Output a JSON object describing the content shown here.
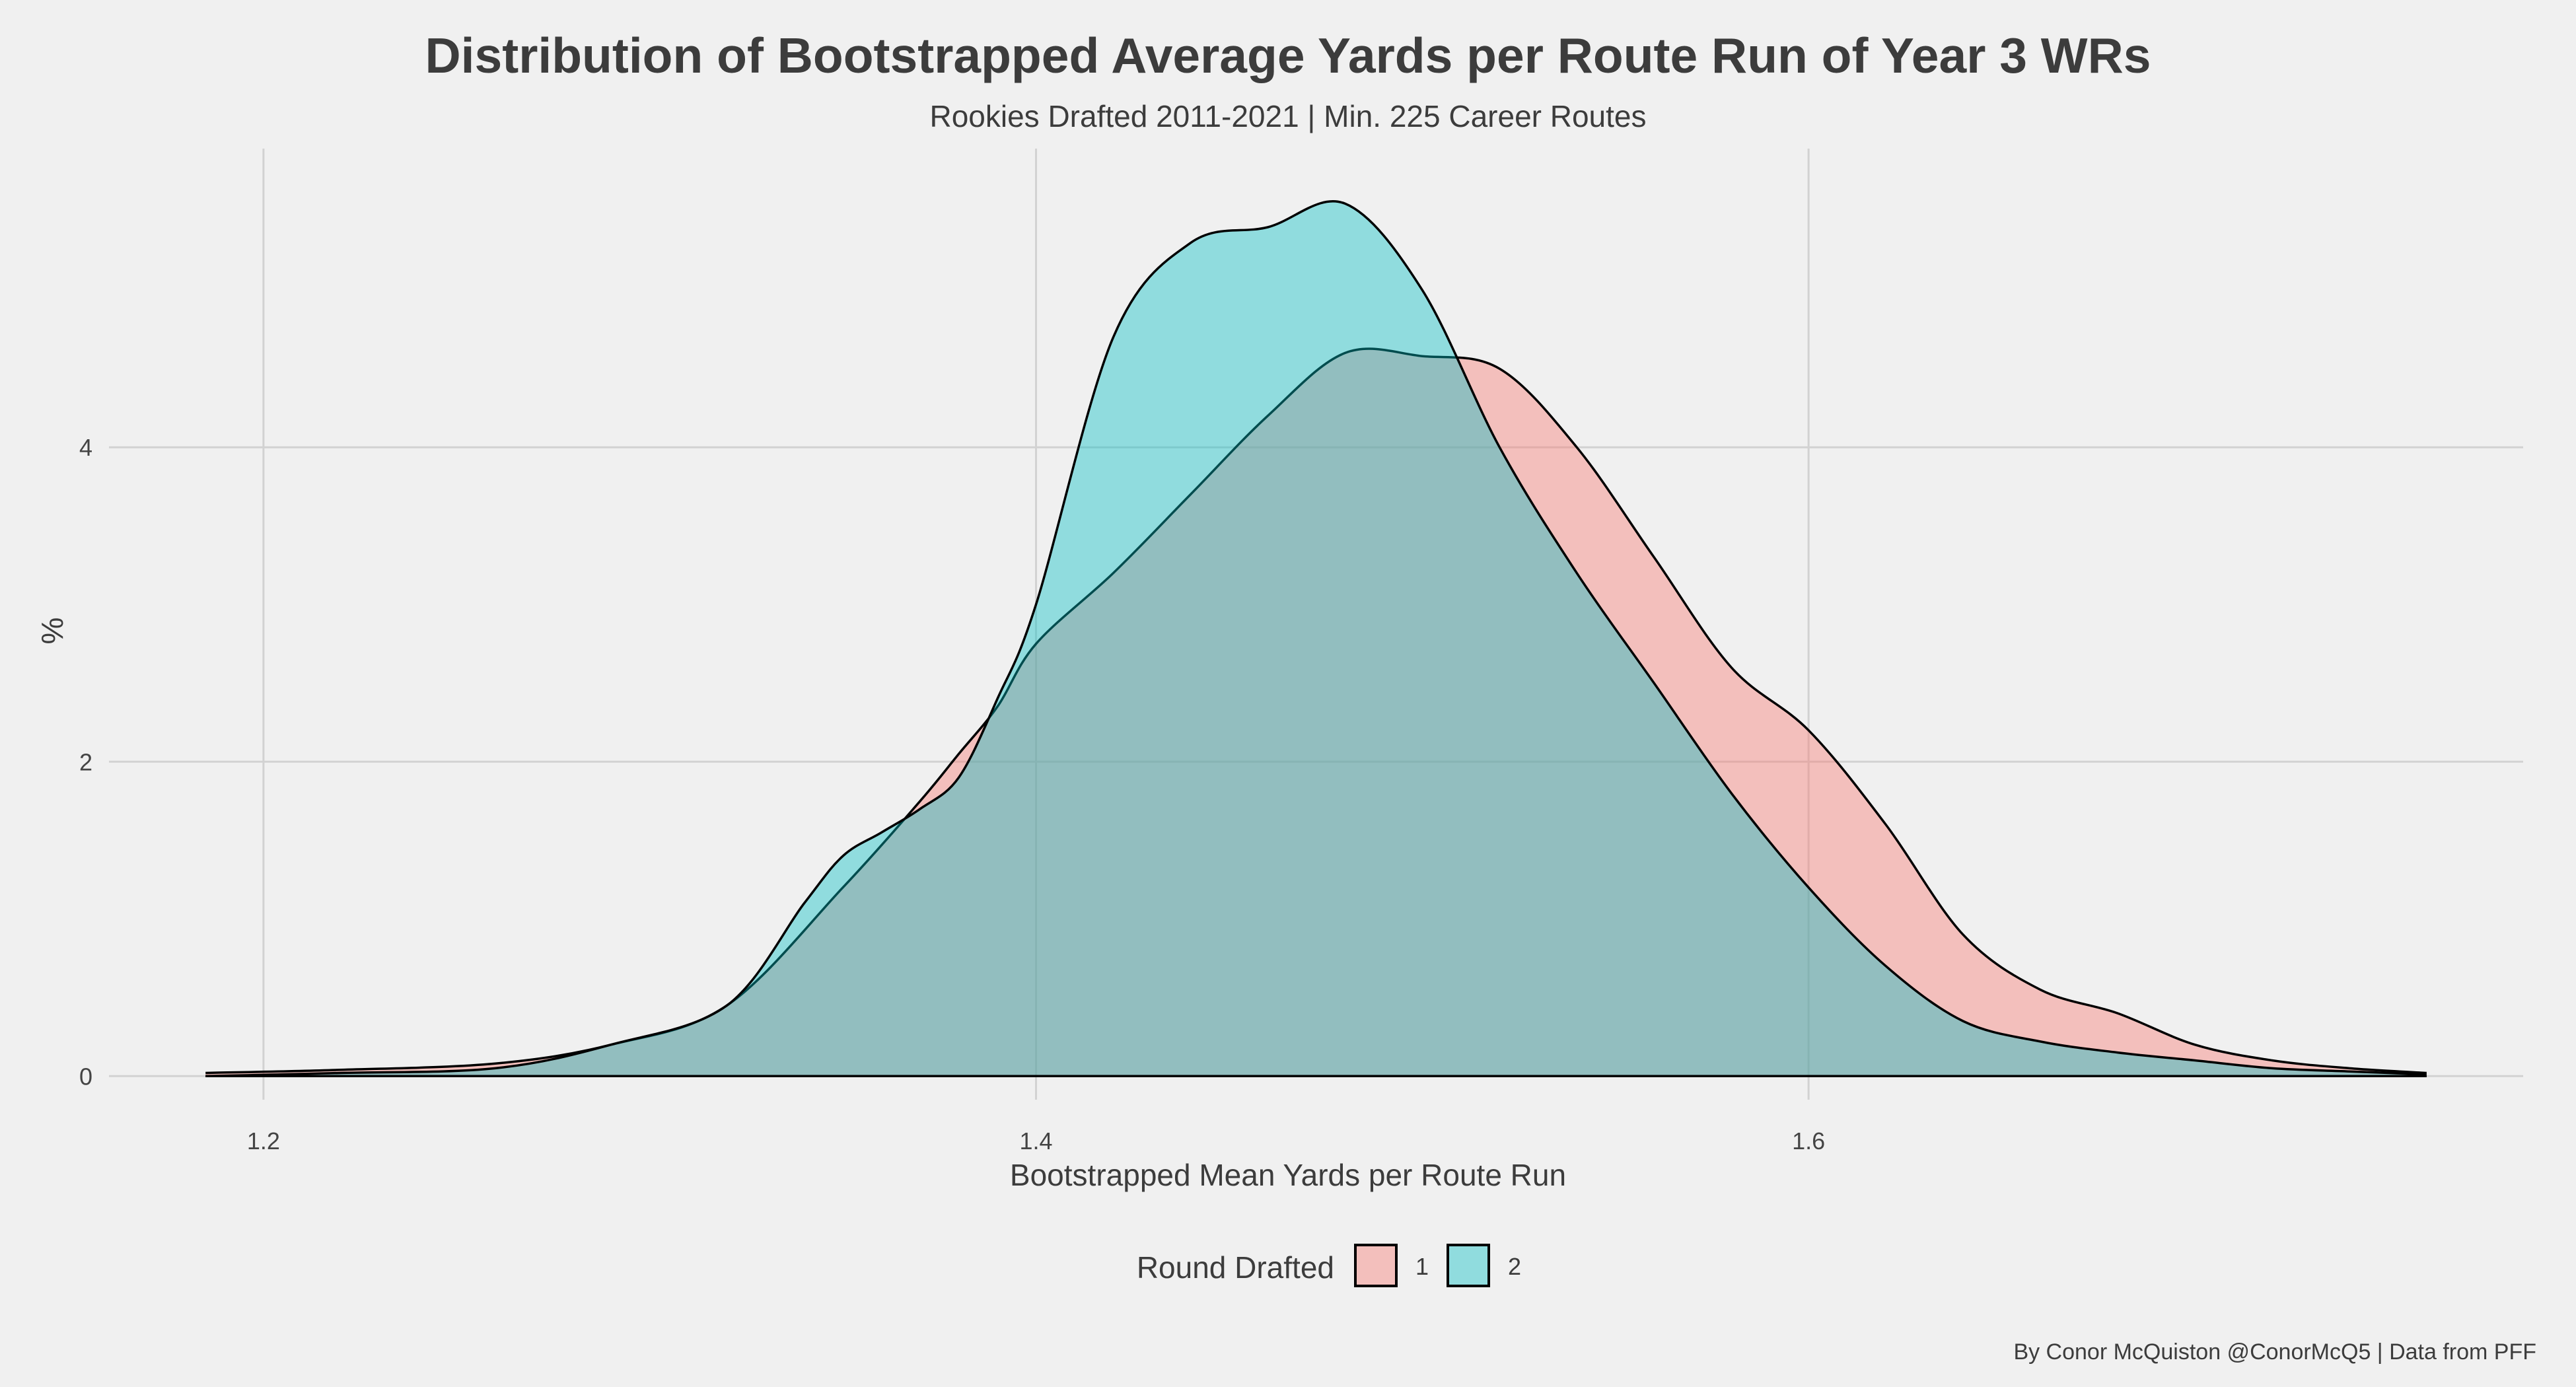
{
  "chart_data": {
    "type": "area",
    "title": "Distribution of Bootstrapped Average Yards per Route Run of Year 3 WRs",
    "subtitle": "Rookies Drafted 2011-2021 | Min. 225 Career Routes",
    "xlabel": "Bootstrapped Mean Yards per Route Run",
    "ylabel": "%",
    "caption": "By Conor McQuiston @ConorMcQ5 | Data from PFF",
    "xlim": [
      1.16,
      1.785
    ],
    "ylim": [
      -0.15,
      5.9
    ],
    "x_ticks": [
      1.2,
      1.4,
      1.6
    ],
    "x_tick_labels": [
      "1.2",
      "1.4",
      "1.6"
    ],
    "y_ticks": [
      0,
      2,
      4
    ],
    "y_tick_labels": [
      "0",
      "2",
      "4"
    ],
    "grid": true,
    "legend": {
      "title": "Round Drafted",
      "position": "bottom"
    },
    "series": [
      {
        "name": "1",
        "color": "#f8766d",
        "x": [
          1.185,
          1.22,
          1.26,
          1.29,
          1.32,
          1.35,
          1.37,
          1.38,
          1.39,
          1.4,
          1.42,
          1.44,
          1.46,
          1.48,
          1.5,
          1.52,
          1.54,
          1.56,
          1.58,
          1.6,
          1.62,
          1.64,
          1.66,
          1.68,
          1.7,
          1.72,
          1.74,
          1.76
        ],
        "y": [
          0.02,
          0.04,
          0.08,
          0.2,
          0.45,
          1.2,
          1.75,
          2.05,
          2.35,
          2.75,
          3.2,
          3.7,
          4.2,
          4.6,
          4.58,
          4.5,
          4.0,
          3.3,
          2.6,
          2.2,
          1.6,
          0.9,
          0.55,
          0.4,
          0.2,
          0.1,
          0.05,
          0.02
        ]
      },
      {
        "name": "2",
        "color": "#00bfc4",
        "x": [
          1.185,
          1.22,
          1.26,
          1.29,
          1.32,
          1.34,
          1.35,
          1.36,
          1.37,
          1.38,
          1.39,
          1.4,
          1.42,
          1.44,
          1.46,
          1.48,
          1.5,
          1.52,
          1.54,
          1.56,
          1.58,
          1.6,
          1.62,
          1.64,
          1.66,
          1.68,
          1.7,
          1.72,
          1.74,
          1.76
        ],
        "y": [
          0.0,
          0.02,
          0.05,
          0.2,
          0.45,
          1.1,
          1.4,
          1.55,
          1.7,
          1.9,
          2.4,
          3.0,
          4.7,
          5.3,
          5.4,
          5.55,
          5.0,
          4.0,
          3.2,
          2.5,
          1.8,
          1.2,
          0.7,
          0.35,
          0.22,
          0.15,
          0.1,
          0.05,
          0.03,
          0.01
        ]
      }
    ]
  }
}
